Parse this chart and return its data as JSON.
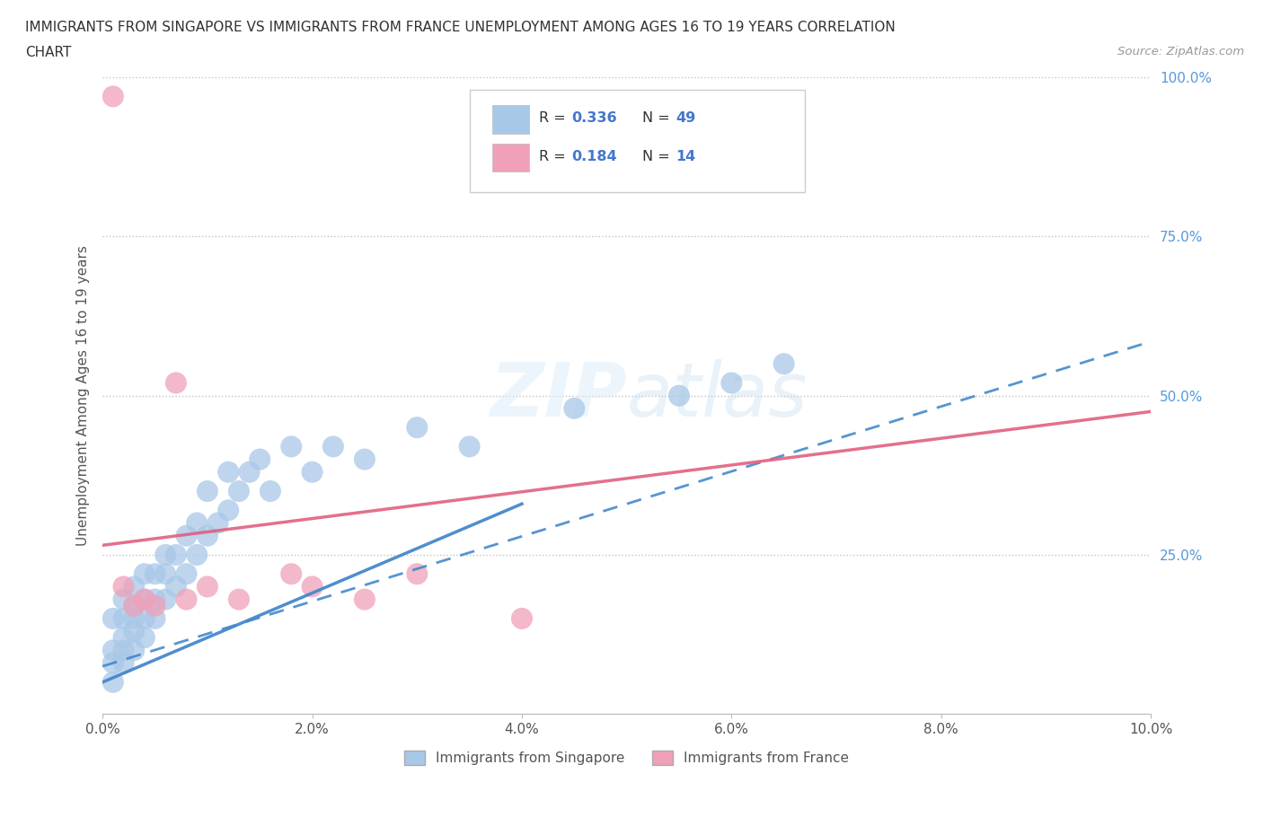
{
  "title_line1": "IMMIGRANTS FROM SINGAPORE VS IMMIGRANTS FROM FRANCE UNEMPLOYMENT AMONG AGES 16 TO 19 YEARS CORRELATION",
  "title_line2": "CHART",
  "source_text": "Source: ZipAtlas.com",
  "ylabel": "Unemployment Among Ages 16 to 19 years",
  "xlim": [
    0.0,
    0.1
  ],
  "ylim": [
    0.0,
    1.0
  ],
  "xticks": [
    0.0,
    0.02,
    0.04,
    0.06,
    0.08,
    0.1
  ],
  "yticks": [
    0.0,
    0.25,
    0.5,
    0.75,
    1.0
  ],
  "xticklabels": [
    "0.0%",
    "2.0%",
    "4.0%",
    "6.0%",
    "8.0%",
    "10.0%"
  ],
  "yticklabels": [
    "",
    "25.0%",
    "50.0%",
    "75.0%",
    "100.0%"
  ],
  "r_singapore": 0.336,
  "n_singapore": 49,
  "r_france": 0.184,
  "n_france": 14,
  "singapore_color": "#a8c8e8",
  "france_color": "#f0a0b8",
  "singapore_line_color": "#4488cc",
  "france_line_color": "#e06080",
  "watermark": "ZIPatlas",
  "sg_x": [
    0.001,
    0.001,
    0.001,
    0.001,
    0.002,
    0.002,
    0.002,
    0.002,
    0.002,
    0.003,
    0.003,
    0.003,
    0.003,
    0.003,
    0.004,
    0.004,
    0.004,
    0.004,
    0.005,
    0.005,
    0.005,
    0.006,
    0.006,
    0.006,
    0.007,
    0.007,
    0.008,
    0.008,
    0.009,
    0.009,
    0.01,
    0.01,
    0.011,
    0.012,
    0.012,
    0.013,
    0.014,
    0.015,
    0.016,
    0.018,
    0.02,
    0.022,
    0.025,
    0.03,
    0.035,
    0.045,
    0.055,
    0.06,
    0.065
  ],
  "sg_y": [
    0.05,
    0.08,
    0.1,
    0.15,
    0.08,
    0.1,
    0.12,
    0.15,
    0.18,
    0.1,
    0.13,
    0.15,
    0.17,
    0.2,
    0.12,
    0.15,
    0.18,
    0.22,
    0.15,
    0.18,
    0.22,
    0.18,
    0.22,
    0.25,
    0.2,
    0.25,
    0.22,
    0.28,
    0.25,
    0.3,
    0.28,
    0.35,
    0.3,
    0.32,
    0.38,
    0.35,
    0.38,
    0.4,
    0.35,
    0.42,
    0.38,
    0.42,
    0.4,
    0.45,
    0.42,
    0.48,
    0.5,
    0.52,
    0.55
  ],
  "fr_x": [
    0.001,
    0.002,
    0.003,
    0.004,
    0.005,
    0.007,
    0.008,
    0.01,
    0.013,
    0.018,
    0.02,
    0.025,
    0.03,
    0.04
  ],
  "fr_y": [
    0.97,
    0.2,
    0.17,
    0.18,
    0.17,
    0.52,
    0.18,
    0.2,
    0.18,
    0.22,
    0.2,
    0.18,
    0.22,
    0.15
  ],
  "sg_trend_x0": 0.0,
  "sg_trend_y0": 0.075,
  "sg_trend_x1": 0.1,
  "sg_trend_y1": 0.585,
  "fr_trend_x0": 0.0,
  "fr_trend_y0": 0.265,
  "fr_trend_x1": 0.1,
  "fr_trend_y1": 0.475
}
